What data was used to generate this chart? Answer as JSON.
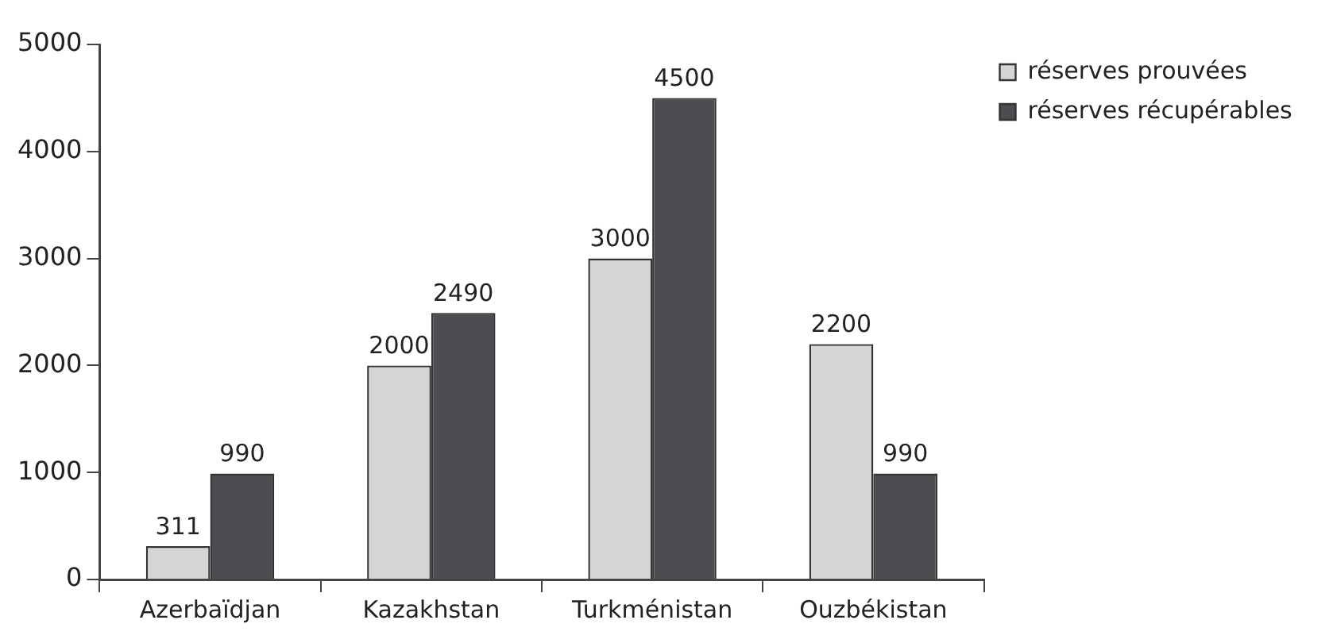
{
  "chart_data": {
    "type": "bar",
    "categories": [
      "Azerbaïdjan",
      "Kazakhstan",
      "Turkménistan",
      "Ouzbékistan"
    ],
    "series": [
      {
        "name": "réserves prouvées",
        "color": "#d4d5d6",
        "values": [
          311,
          2000,
          3000,
          2200
        ]
      },
      {
        "name": "réserves récupérables",
        "color": "#4b4d50",
        "values": [
          990,
          2490,
          4500,
          990
        ]
      }
    ],
    "ylim": [
      0,
      5000
    ],
    "yticks": [
      0,
      1000,
      2000,
      3000,
      4000,
      5000
    ],
    "grid": false,
    "legend": "top right",
    "data_labels": true
  }
}
